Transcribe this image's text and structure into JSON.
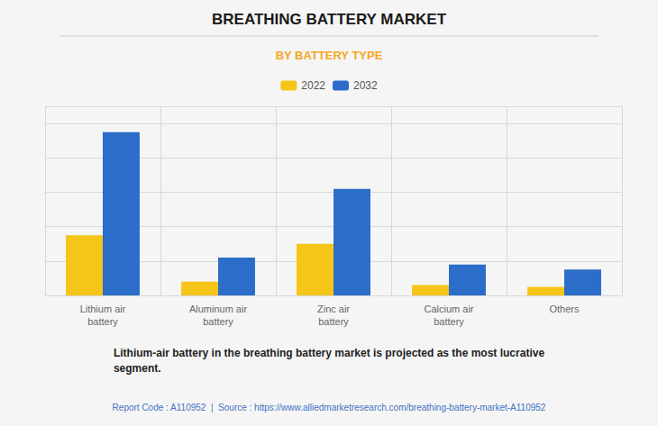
{
  "chart_data": {
    "type": "bar",
    "title": "BREATHING BATTERY MARKET",
    "subtitle": "BY BATTERY TYPE",
    "categories": [
      "Lithium air\nbattery",
      "Aluminum air\nbattery",
      "Zinc air\nbattery",
      "Calcium air\nbattery",
      "Others"
    ],
    "series": [
      {
        "name": "2022",
        "color": "#F5C518",
        "values": [
          35,
          8,
          30,
          6,
          5
        ]
      },
      {
        "name": "2032",
        "color": "#2B6DC8",
        "values": [
          95,
          22,
          62,
          18,
          15
        ]
      }
    ],
    "ylim": [
      0,
      110
    ],
    "yticks": [
      0,
      20,
      40,
      60,
      80,
      100
    ],
    "grid": true,
    "legend": "top",
    "tick_labels": "x",
    "annotations": [
      "Lithium-air battery in the breathing battery market is projected as the most lucrative\nsegment.",
      "Report Code : A110952  |  Source : https://www.alliedmarketresearch.com/breathing-battery-market-A110952"
    ]
  }
}
